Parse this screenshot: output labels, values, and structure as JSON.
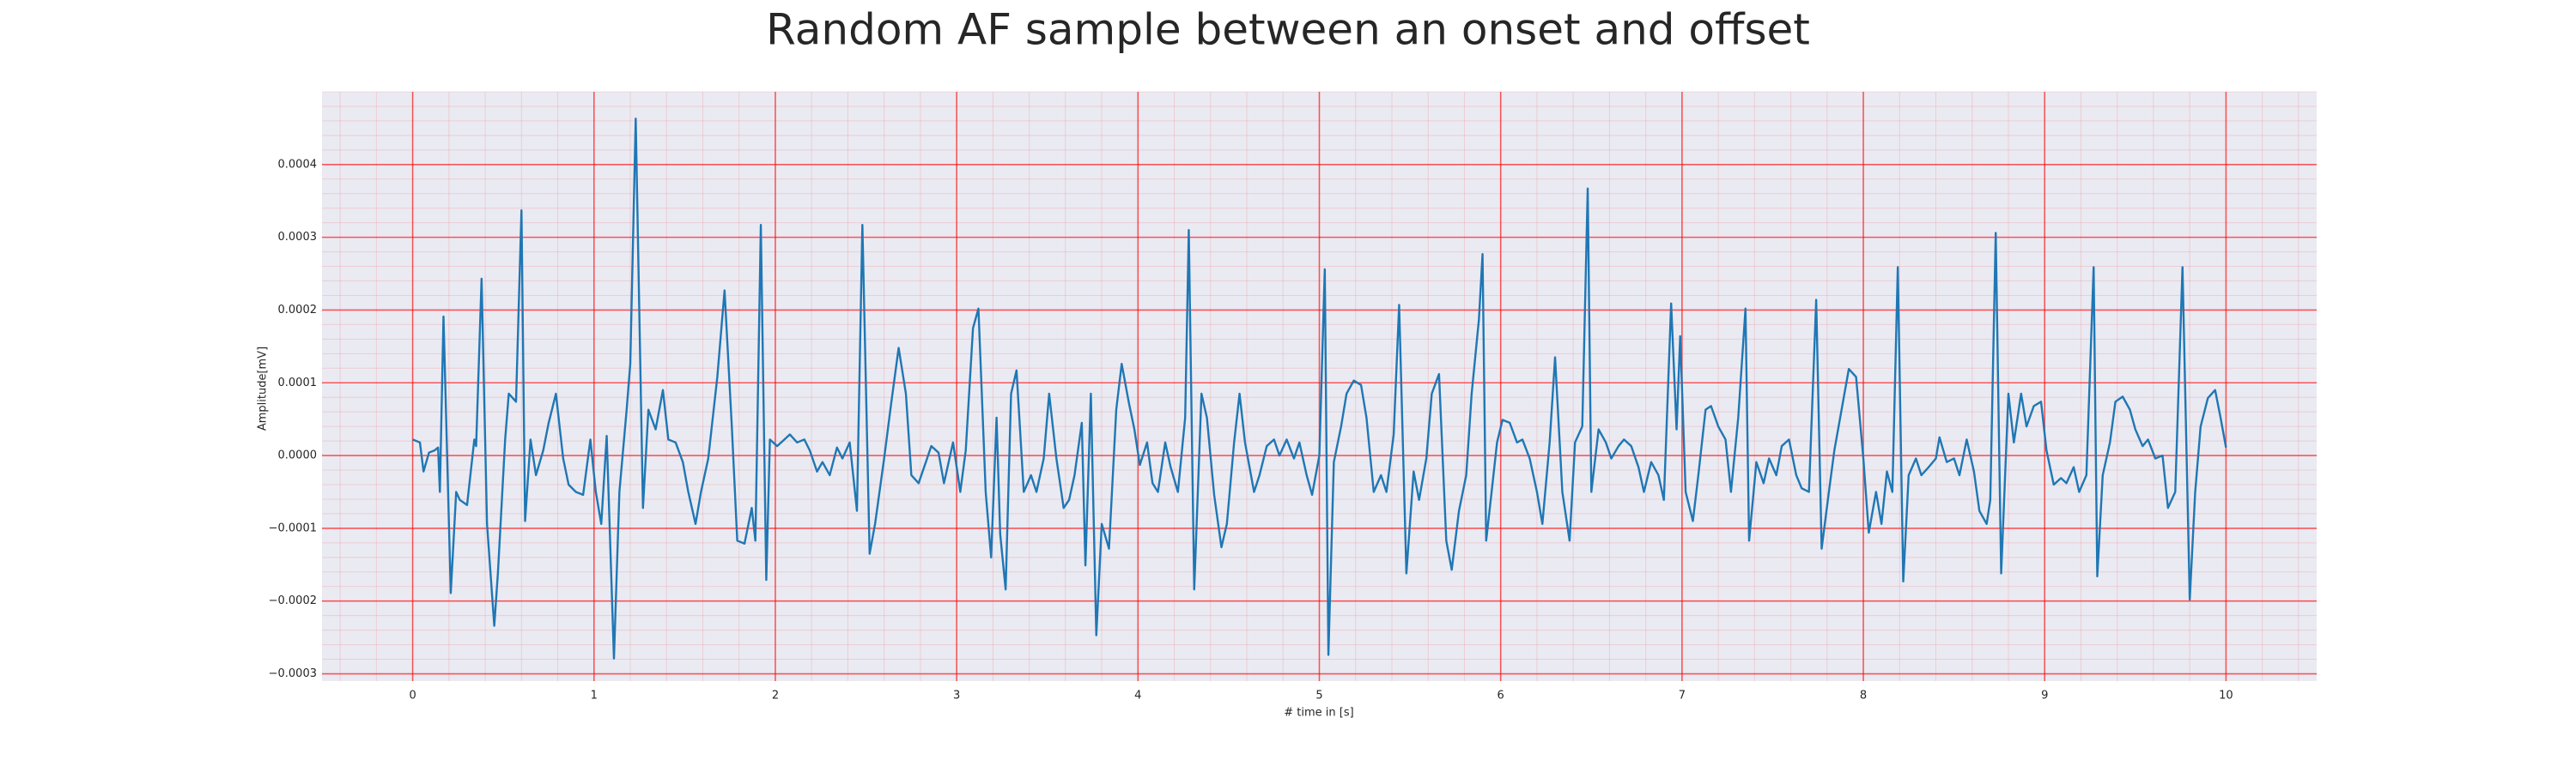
{
  "chart_data": {
    "type": "line",
    "title": "Random AF sample between an onset and offset",
    "xlabel": "# time in [s]",
    "ylabel": "Amplitude[mV]",
    "xlim": [
      -0.5,
      10.5
    ],
    "ylim": [
      -0.00031,
      0.0005
    ],
    "xticks": [
      0,
      1,
      2,
      3,
      4,
      5,
      6,
      7,
      8,
      9,
      10
    ],
    "yticks": [
      {
        "value": -0.0003,
        "label": "−0.0003"
      },
      {
        "value": -0.0002,
        "label": "−0.0002"
      },
      {
        "value": -0.0001,
        "label": "−0.0001"
      },
      {
        "value": 0,
        "label": "0.0000"
      },
      0.0001,
      0.0002,
      0.0003,
      0.0004
    ],
    "grid": true,
    "minor_grid": true,
    "grid_color": "#ff0000",
    "background": "#eaeaf2",
    "color": "#1f77b4",
    "x": [
      0,
      0.04,
      0.06,
      0.09,
      0.12,
      0.14,
      0.15,
      0.17,
      0.21,
      0.24,
      0.26,
      0.3,
      0.34,
      0.35,
      0.38,
      0.41,
      0.45,
      0.47,
      0.51,
      0.53,
      0.57,
      0.6,
      0.62,
      0.65,
      0.68,
      0.72,
      0.75,
      0.79,
      0.83,
      0.86,
      0.9,
      0.94,
      0.98,
      1.01,
      1.04,
      1.07,
      1.11,
      1.14,
      1.18,
      1.2,
      1.23,
      1.27,
      1.3,
      1.34,
      1.38,
      1.41,
      1.45,
      1.49,
      1.52,
      1.56,
      1.59,
      1.63,
      1.68,
      1.72,
      1.76,
      1.79,
      1.83,
      1.87,
      1.89,
      1.92,
      1.95,
      1.97,
      2.01,
      2.05,
      2.08,
      2.12,
      2.16,
      2.19,
      2.23,
      2.26,
      2.3,
      2.34,
      2.37,
      2.41,
      2.45,
      2.48,
      2.52,
      2.55,
      2.6,
      2.64,
      2.68,
      2.72,
      2.75,
      2.79,
      2.83,
      2.86,
      2.9,
      2.93,
      2.98,
      3.02,
      3.05,
      3.09,
      3.12,
      3.16,
      3.19,
      3.22,
      3.24,
      3.27,
      3.3,
      3.33,
      3.37,
      3.41,
      3.44,
      3.48,
      3.51,
      3.55,
      3.59,
      3.62,
      3.65,
      3.69,
      3.71,
      3.74,
      3.77,
      3.8,
      3.84,
      3.88,
      3.91,
      3.95,
      3.98,
      4.01,
      4.05,
      4.08,
      4.11,
      4.15,
      4.18,
      4.22,
      4.26,
      4.28,
      4.31,
      4.35,
      4.38,
      4.42,
      4.46,
      4.49,
      4.53,
      4.56,
      4.59,
      4.64,
      4.67,
      4.71,
      4.75,
      4.78,
      4.82,
      4.86,
      4.89,
      4.93,
      4.96,
      5.0,
      5.03,
      5.05,
      5.08,
      5.12,
      5.15,
      5.19,
      5.23,
      5.26,
      5.3,
      5.34,
      5.37,
      5.41,
      5.44,
      5.48,
      5.52,
      5.55,
      5.59,
      5.62,
      5.66,
      5.7,
      5.73,
      5.77,
      5.81,
      5.84,
      5.88,
      5.9,
      5.92,
      5.95,
      5.98,
      6.01,
      6.05,
      6.09,
      6.12,
      6.16,
      6.2,
      6.23,
      6.27,
      6.3,
      6.34,
      6.38,
      6.41,
      6.45,
      6.48,
      6.5,
      6.54,
      6.58,
      6.61,
      6.65,
      6.68,
      6.72,
      6.76,
      6.79,
      6.83,
      6.87,
      6.9,
      6.94,
      6.97,
      6.99,
      7.02,
      7.06,
      7.09,
      7.13,
      7.16,
      7.2,
      7.24,
      7.27,
      7.31,
      7.35,
      7.37,
      7.41,
      7.45,
      7.48,
      7.52,
      7.55,
      7.59,
      7.63,
      7.66,
      7.7,
      7.74,
      7.77,
      7.81,
      7.84,
      7.88,
      7.92,
      7.96,
      8.0,
      8.03,
      8.07,
      8.1,
      8.13,
      8.16,
      8.19,
      8.22,
      8.25,
      8.29,
      8.32,
      8.36,
      8.4,
      8.42,
      8.46,
      8.5,
      8.53,
      8.57,
      8.61,
      8.64,
      8.68,
      8.7,
      8.73,
      8.76,
      8.8,
      8.83,
      8.87,
      8.9,
      8.94,
      8.98,
      9.01,
      9.05,
      9.09,
      9.12,
      9.16,
      9.19,
      9.23,
      9.27,
      9.29,
      9.32,
      9.36,
      9.39,
      9.43,
      9.47,
      9.5,
      9.54,
      9.57,
      9.61,
      9.65,
      9.68,
      9.72,
      9.76,
      9.8,
      9.83,
      9.86,
      9.9,
      9.94,
      9.97,
      10.0
    ],
    "values": [
      2.2e-05,
      1.8e-05,
      -2.2e-05,
      4e-06,
      7e-06,
      1.1e-05,
      -5e-05,
      0.000191,
      -0.000189,
      -5e-05,
      -6.1e-05,
      -6.8e-05,
      2.2e-05,
      1.3e-05,
      0.000243,
      -9.4e-05,
      -0.000234,
      -0.000162,
      2.2e-05,
      8.5e-05,
      7.4e-05,
      0.000337,
      -9e-05,
      2.2e-05,
      -2.7e-05,
      7e-06,
      4.5e-05,
      8.5e-05,
      -4e-06,
      -4e-05,
      -5e-05,
      -5.4e-05,
      2.2e-05,
      -5e-05,
      -9.4e-05,
      2.7e-05,
      -0.000279,
      -5e-05,
      6.3e-05,
      0.000126,
      0.000463,
      -7.2e-05,
      6.3e-05,
      3.6e-05,
      9e-05,
      2.2e-05,
      1.8e-05,
      -9e-06,
      -5e-05,
      -9.4e-05,
      -5e-05,
      -4e-06,
      0.000108,
      0.000227,
      4e-05,
      -0.000117,
      -0.000121,
      -7.2e-05,
      -0.000117,
      0.000317,
      -0.000171,
      2.2e-05,
      1.3e-05,
      2.2e-05,
      2.9e-05,
      1.8e-05,
      2.2e-05,
      7e-06,
      -2.2e-05,
      -9e-06,
      -2.7e-05,
      1.1e-05,
      -4e-06,
      1.8e-05,
      -7.6e-05,
      0.000317,
      -0.000135,
      -9.4e-05,
      -4e-06,
      7.4e-05,
      0.000148,
      8.5e-05,
      -2.7e-05,
      -3.8e-05,
      -9e-06,
      1.3e-05,
      4e-06,
      -3.8e-05,
      1.8e-05,
      -5e-05,
      7e-06,
      0.000175,
      0.000202,
      -5e-05,
      -0.00014,
      5.2e-05,
      -0.000108,
      -0.000184,
      8.5e-05,
      0.000117,
      -5e-05,
      -2.7e-05,
      -5e-05,
      -4e-06,
      8.5e-05,
      -4e-06,
      -7.2e-05,
      -6.1e-05,
      -2.7e-05,
      4.5e-05,
      -0.000151,
      8.5e-05,
      -0.000247,
      -9.4e-05,
      -0.000128,
      6.3e-05,
      0.000126,
      7.2e-05,
      3.6e-05,
      -1.3e-05,
      1.8e-05,
      -3.8e-05,
      -5e-05,
      1.8e-05,
      -1.6e-05,
      -5e-05,
      5.2e-05,
      0.00031,
      -0.000184,
      8.5e-05,
      5.2e-05,
      -5.4e-05,
      -0.000126,
      -9.4e-05,
      1.8e-05,
      8.5e-05,
      1.8e-05,
      -5e-05,
      -2.7e-05,
      1.3e-05,
      2.2e-05,
      0,
      2.2e-05,
      -4e-06,
      1.8e-05,
      -2.7e-05,
      -5.4e-05,
      0,
      0.000256,
      -0.000274,
      -9e-06,
      4e-05,
      8.5e-05,
      0.000103,
      9.7e-05,
      5.2e-05,
      -5e-05,
      -2.7e-05,
      -5e-05,
      2.9e-05,
      0.000207,
      -0.000162,
      -2.2e-05,
      -6.1e-05,
      -4e-06,
      8.5e-05,
      0.000112,
      -0.000117,
      -0.000157,
      -7.6e-05,
      -2.7e-05,
      8.5e-05,
      0.000187,
      0.000277,
      -0.000117,
      -5e-05,
      1.8e-05,
      4.9e-05,
      4.5e-05,
      1.8e-05,
      2.2e-05,
      -4e-06,
      -5e-05,
      -9.4e-05,
      1.8e-05,
      0.000135,
      -5e-05,
      -0.000117,
      1.8e-05,
      4e-05,
      0.000367,
      -5e-05,
      3.6e-05,
      1.8e-05,
      -4e-06,
      1.3e-05,
      2.2e-05,
      1.3e-05,
      -1.6e-05,
      -5e-05,
      -9e-06,
      -2.7e-05,
      -6.1e-05,
      0.000209,
      3.6e-05,
      0.000164,
      -5e-05,
      -9e-05,
      -2.7e-05,
      6.3e-05,
      6.8e-05,
      4e-05,
      2.2e-05,
      -5e-05,
      5.2e-05,
      0.000202,
      -0.000117,
      -9e-06,
      -3.8e-05,
      -4e-06,
      -2.7e-05,
      1.3e-05,
      2.2e-05,
      -2.7e-05,
      -4.5e-05,
      -5e-05,
      0.000214,
      -0.000128,
      -5e-05,
      7e-06,
      6.3e-05,
      0.000119,
      0.000108,
      -4e-06,
      -0.000106,
      -5e-05,
      -9.4e-05,
      -2.2e-05,
      -5e-05,
      0.000259,
      -0.000173,
      -2.7e-05,
      -4e-06,
      -2.7e-05,
      -1.6e-05,
      -4e-06,
      2.5e-05,
      -9e-06,
      -4e-06,
      -2.7e-05,
      2.2e-05,
      -2.2e-05,
      -7.6e-05,
      -9.4e-05,
      -6.1e-05,
      0.000306,
      -0.000162,
      8.5e-05,
      1.8e-05,
      8.5e-05,
      4e-05,
      6.8e-05,
      7.4e-05,
      7e-06,
      -4e-05,
      -3.1e-05,
      -3.8e-05,
      -1.6e-05,
      -5e-05,
      -2.7e-05,
      0.000259,
      -0.000166,
      -2.7e-05,
      1.8e-05,
      7.4e-05,
      8.1e-05,
      6.3e-05,
      3.6e-05,
      1.3e-05,
      2.2e-05,
      -4e-06,
      0,
      -7.2e-05,
      -5e-05,
      0.000259,
      -0.000198,
      -5e-05,
      4e-05,
      7.9e-05,
      9e-05,
      5.2e-05,
      1.1e-05
    ]
  }
}
